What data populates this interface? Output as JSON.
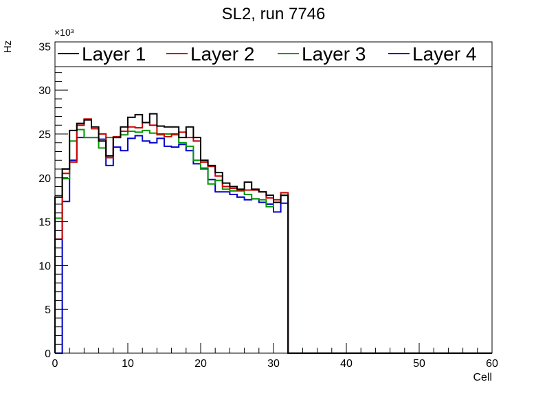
{
  "chart_data": {
    "type": "line",
    "title": "SL2, run 7746",
    "xlabel": "Cell",
    "ylabel": "Hz",
    "y_multiplier_label": "×10³",
    "xlim": [
      0,
      60
    ],
    "ylim": [
      0,
      35.5
    ],
    "x_ticks": [
      "0",
      "10",
      "20",
      "30",
      "40",
      "50",
      "60"
    ],
    "y_ticks": [
      "0",
      "5",
      "10",
      "15",
      "20",
      "25",
      "30",
      "35"
    ],
    "legend_position": "top",
    "grid": false,
    "bin_edges_start": 0,
    "bin_width": 1,
    "series": [
      {
        "name": "Layer 1",
        "color": "#000000",
        "values": [
          17.8,
          21.0,
          25.4,
          26.2,
          26.6,
          25.8,
          24.2,
          22.5,
          24.6,
          25.8,
          26.9,
          27.2,
          26.3,
          27.3,
          25.9,
          25.8,
          25.8,
          24.6,
          25.8,
          24.6,
          22.0,
          21.4,
          20.6,
          19.4,
          19.0,
          18.7,
          19.5,
          18.7,
          18.4,
          18.0,
          17.2,
          18.0,
          0,
          0,
          0,
          0,
          0,
          0,
          0,
          0,
          0,
          0,
          0,
          0,
          0,
          0,
          0,
          0,
          0,
          0,
          0,
          0,
          0,
          0,
          0,
          0,
          0,
          0,
          0,
          0
        ]
      },
      {
        "name": "Layer 2",
        "color": "#cc0000",
        "values": [
          13.0,
          20.5,
          21.8,
          26.0,
          26.7,
          25.6,
          25.0,
          22.3,
          24.7,
          25.3,
          25.8,
          25.7,
          26.3,
          26.0,
          25.0,
          24.7,
          25.0,
          25.2,
          24.6,
          24.2,
          21.8,
          21.3,
          20.2,
          19.0,
          18.8,
          18.6,
          18.6,
          18.6,
          18.4,
          17.7,
          17.5,
          18.3,
          0,
          0,
          0,
          0,
          0,
          0,
          0,
          0,
          0,
          0,
          0,
          0,
          0,
          0,
          0,
          0,
          0,
          0,
          0,
          0,
          0,
          0,
          0,
          0,
          0,
          0,
          0,
          0
        ]
      },
      {
        "name": "Layer 3",
        "color": "#009900",
        "values": [
          15.4,
          19.9,
          24.2,
          25.5,
          24.6,
          24.6,
          23.4,
          24.6,
          24.6,
          24.9,
          25.3,
          25.2,
          25.4,
          25.1,
          24.9,
          25.0,
          24.9,
          24.0,
          23.6,
          22.0,
          21.0,
          19.3,
          19.7,
          18.7,
          18.5,
          18.5,
          18.1,
          17.6,
          17.5,
          16.7,
          17.2,
          18.0,
          0,
          0,
          0,
          0,
          0,
          0,
          0,
          0,
          0,
          0,
          0,
          0,
          0,
          0,
          0,
          0,
          0,
          0,
          0,
          0,
          0,
          0,
          0,
          0,
          0,
          0,
          0,
          0
        ]
      },
      {
        "name": "Layer 4",
        "color": "#0000cc",
        "values": [
          0,
          17.3,
          22.0,
          24.6,
          24.6,
          24.6,
          24.4,
          21.4,
          23.5,
          23.1,
          24.5,
          24.8,
          24.2,
          24.0,
          24.5,
          23.6,
          23.5,
          23.8,
          23.1,
          21.6,
          21.1,
          19.8,
          18.4,
          18.4,
          18.1,
          17.8,
          17.5,
          17.6,
          17.2,
          17.0,
          16.1,
          17.1,
          0,
          0,
          0,
          0,
          0,
          0,
          0,
          0,
          0,
          0,
          0,
          0,
          0,
          0,
          0,
          0,
          0,
          0,
          0,
          0,
          0,
          0,
          0,
          0,
          0,
          0,
          0,
          0
        ]
      }
    ]
  }
}
